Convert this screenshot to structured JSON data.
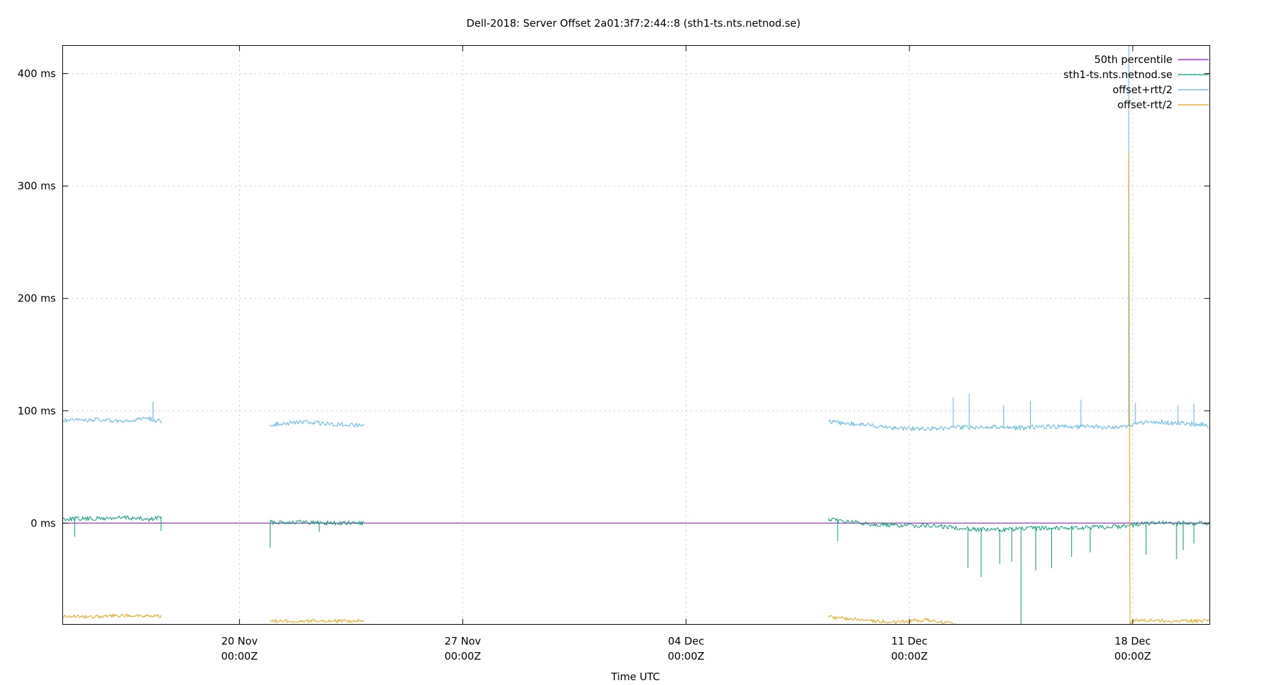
{
  "chart_data": {
    "type": "line",
    "title": "Dell-2018: Server Offset 2a01:3f7:2:44::8 (sth1-ts.nts.netnod.se)",
    "xlabel": "Time UTC",
    "ylabel": "",
    "x_axis": {
      "type": "time",
      "range": [
        "2025-11-14T11:00Z",
        "2025-12-20T10:00Z"
      ],
      "ticks": [
        {
          "date": "2025-11-20T00:00Z",
          "line1": "20 Nov",
          "line2": "00:00Z"
        },
        {
          "date": "2025-11-27T00:00Z",
          "line1": "27 Nov",
          "line2": "00:00Z"
        },
        {
          "date": "2025-12-04T00:00Z",
          "line1": "04 Dec",
          "line2": "00:00Z"
        },
        {
          "date": "2025-12-11T00:00Z",
          "line1": "11 Dec",
          "line2": "00:00Z"
        },
        {
          "date": "2025-12-18T00:00Z",
          "line1": "18 Dec",
          "line2": "00:00Z"
        }
      ]
    },
    "y_axis": {
      "unit": "ms",
      "range": [
        -90,
        425
      ],
      "ticks": [
        {
          "value": 0,
          "label": "0 ms"
        },
        {
          "value": 100,
          "label": "100 ms"
        },
        {
          "value": 200,
          "label": "200 ms"
        },
        {
          "value": 300,
          "label": "300 ms"
        },
        {
          "value": 400,
          "label": "400 ms"
        }
      ]
    },
    "grid": true,
    "legend_position": "top-right",
    "series": [
      {
        "name": "50th percentile",
        "color": "#9400d3",
        "points": [
          [
            "2025-11-14T11:00Z",
            0
          ],
          [
            "2025-12-20T10:00Z",
            0
          ]
        ]
      },
      {
        "name": "sth1-ts.nts.netnod.se",
        "color": "#009e73",
        "segments": [
          [
            [
              "2025-11-14T11:00Z",
              4
            ],
            [
              "2025-11-15T12:00Z",
              4
            ],
            [
              "2025-11-16T12:00Z",
              5
            ],
            [
              "2025-11-17T04:00Z",
              3
            ],
            [
              "2025-11-17T14:00Z",
              6
            ]
          ],
          [
            [
              "2025-11-20T23:00Z",
              1
            ],
            [
              "2025-11-22T00:00Z",
              1
            ],
            [
              "2025-11-23T00:00Z",
              0
            ],
            [
              "2025-11-23T22:00Z",
              0
            ]
          ],
          [
            [
              "2025-12-08T11:00Z",
              3
            ],
            [
              "2025-12-09T12:00Z",
              0
            ],
            [
              "2025-12-10T12:00Z",
              -2
            ],
            [
              "2025-12-11T12:00Z",
              -2
            ],
            [
              "2025-12-12T12:00Z",
              -4
            ],
            [
              "2025-12-13T12:00Z",
              -6
            ],
            [
              "2025-12-14T12:00Z",
              -5
            ],
            [
              "2025-12-15T12:00Z",
              -4
            ],
            [
              "2025-12-16T12:00Z",
              -4
            ],
            [
              "2025-12-17T12:00Z",
              -3
            ],
            [
              "2025-12-18T12:00Z",
              0
            ],
            [
              "2025-12-19T12:00Z",
              0
            ],
            [
              "2025-12-20T10:00Z",
              0
            ]
          ]
        ],
        "spikes": [
          [
            "2025-11-14T20:00Z",
            -12
          ],
          [
            "2025-11-17T13:00Z",
            -7
          ],
          [
            "2025-11-20T23:00Z",
            -22
          ],
          [
            "2025-11-22T12:00Z",
            -8
          ],
          [
            "2025-12-08T18:00Z",
            -16
          ],
          [
            "2025-12-12T20:00Z",
            -40
          ],
          [
            "2025-12-13T06:00Z",
            -48
          ],
          [
            "2025-12-13T20:00Z",
            -36
          ],
          [
            "2025-12-14T05:00Z",
            -34
          ],
          [
            "2025-12-14T12:00Z",
            -90
          ],
          [
            "2025-12-14T23:00Z",
            -42
          ],
          [
            "2025-12-15T11:00Z",
            -40
          ],
          [
            "2025-12-16T02:00Z",
            -30
          ],
          [
            "2025-12-16T16:00Z",
            -26
          ],
          [
            "2025-12-18T10:00Z",
            -28
          ],
          [
            "2025-12-19T09:00Z",
            -32
          ],
          [
            "2025-12-19T14:00Z",
            -24
          ],
          [
            "2025-12-19T22:00Z",
            -18
          ]
        ]
      },
      {
        "name": "offset+rtt/2",
        "color": "#56b4e9",
        "segments": [
          [
            [
              "2025-11-14T11:00Z",
              91
            ],
            [
              "2025-11-15T12:00Z",
              92
            ],
            [
              "2025-11-16T12:00Z",
              90
            ],
            [
              "2025-11-17T00:00Z",
              94
            ],
            [
              "2025-11-17T14:00Z",
              90
            ]
          ],
          [
            [
              "2025-11-20T23:00Z",
              88
            ],
            [
              "2025-11-22T00:00Z",
              90
            ],
            [
              "2025-11-23T00:00Z",
              88
            ],
            [
              "2025-11-23T22:00Z",
              87
            ]
          ],
          [
            [
              "2025-12-08T11:00Z",
              90
            ],
            [
              "2025-12-09T12:00Z",
              88
            ],
            [
              "2025-12-10T12:00Z",
              85
            ],
            [
              "2025-12-11T12:00Z",
              84
            ],
            [
              "2025-12-12T12:00Z",
              85
            ],
            [
              "2025-12-13T12:00Z",
              86
            ],
            [
              "2025-12-14T12:00Z",
              85
            ],
            [
              "2025-12-15T12:00Z",
              86
            ],
            [
              "2025-12-16T12:00Z",
              86
            ],
            [
              "2025-12-17T12:00Z",
              85
            ],
            [
              "2025-12-18T12:00Z",
              90
            ],
            [
              "2025-12-19T12:00Z",
              89
            ],
            [
              "2025-12-20T10:00Z",
              87
            ]
          ]
        ],
        "spikes": [
          [
            "2025-11-17T07:00Z",
            108
          ],
          [
            "2025-12-12T09:00Z",
            112
          ],
          [
            "2025-12-12T21:00Z",
            115
          ],
          [
            "2025-12-13T23:00Z",
            105
          ],
          [
            "2025-12-14T19:00Z",
            109
          ],
          [
            "2025-12-16T09:00Z",
            110
          ],
          [
            "2025-12-17T21:00Z",
            425
          ],
          [
            "2025-12-18T02:00Z",
            107
          ],
          [
            "2025-12-19T10:00Z",
            105
          ],
          [
            "2025-12-19T22:00Z",
            106
          ]
        ]
      },
      {
        "name": "offset-rtt/2",
        "color": "#e69f00",
        "segments": [
          [
            [
              "2025-11-14T11:00Z",
              -83
            ],
            [
              "2025-11-15T12:00Z",
              -83
            ],
            [
              "2025-11-16T12:00Z",
              -82
            ],
            [
              "2025-11-17T14:00Z",
              -83
            ]
          ],
          [
            [
              "2025-11-20T23:00Z",
              -87
            ],
            [
              "2025-11-22T00:00Z",
              -87
            ],
            [
              "2025-11-23T00:00Z",
              -87
            ],
            [
              "2025-11-23T22:00Z",
              -87
            ]
          ],
          [
            [
              "2025-12-08T11:00Z",
              -83
            ],
            [
              "2025-12-09T00:00Z",
              -85
            ],
            [
              "2025-12-09T12:00Z",
              -86
            ],
            [
              "2025-12-10T12:00Z",
              -88
            ],
            [
              "2025-12-11T12:00Z",
              -86
            ],
            [
              "2025-12-12T00:00Z",
              -88
            ],
            [
              "2025-12-12T12:00Z",
              -90
            ]
          ],
          [
            [
              "2025-12-17T21:00Z",
              330
            ],
            [
              "2025-12-17T22:00Z",
              -90
            ],
            [
              "2025-12-18T00:00Z",
              -86
            ],
            [
              "2025-12-19T00:00Z",
              -87
            ],
            [
              "2025-12-20T10:00Z",
              -87
            ]
          ]
        ],
        "spikes": []
      }
    ]
  }
}
